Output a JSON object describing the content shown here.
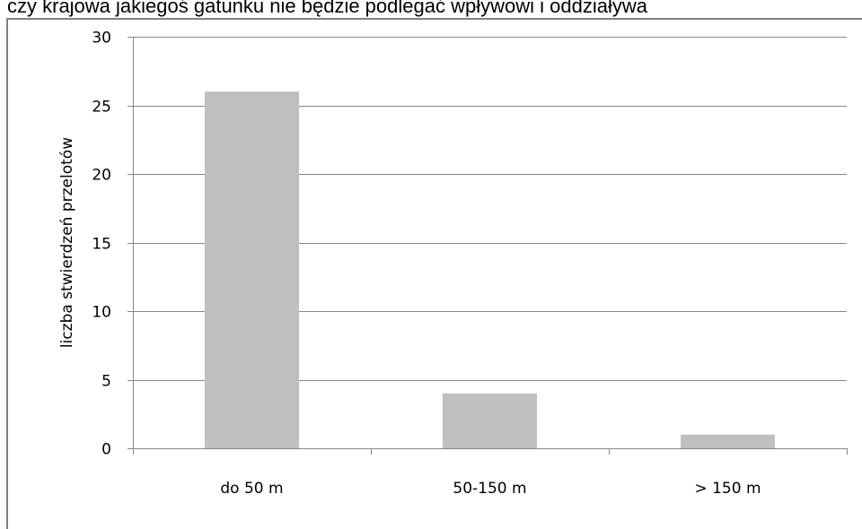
{
  "header": {
    "text": "czy krajowa jakiegoś gatunku nie będzie podlegać wpływowi i oddziaływa"
  },
  "chart_data": {
    "type": "bar",
    "categories": [
      "do 50 m",
      "50-150 m",
      "> 150 m"
    ],
    "values": [
      26,
      4,
      1
    ],
    "ylabel": "liczba stwierdzeń przelotów",
    "ylim": [
      0,
      30
    ],
    "yticks": [
      0,
      5,
      10,
      15,
      20,
      25,
      30
    ],
    "bar_color": "#bfbfbf",
    "grid": true,
    "legend": "none"
  }
}
